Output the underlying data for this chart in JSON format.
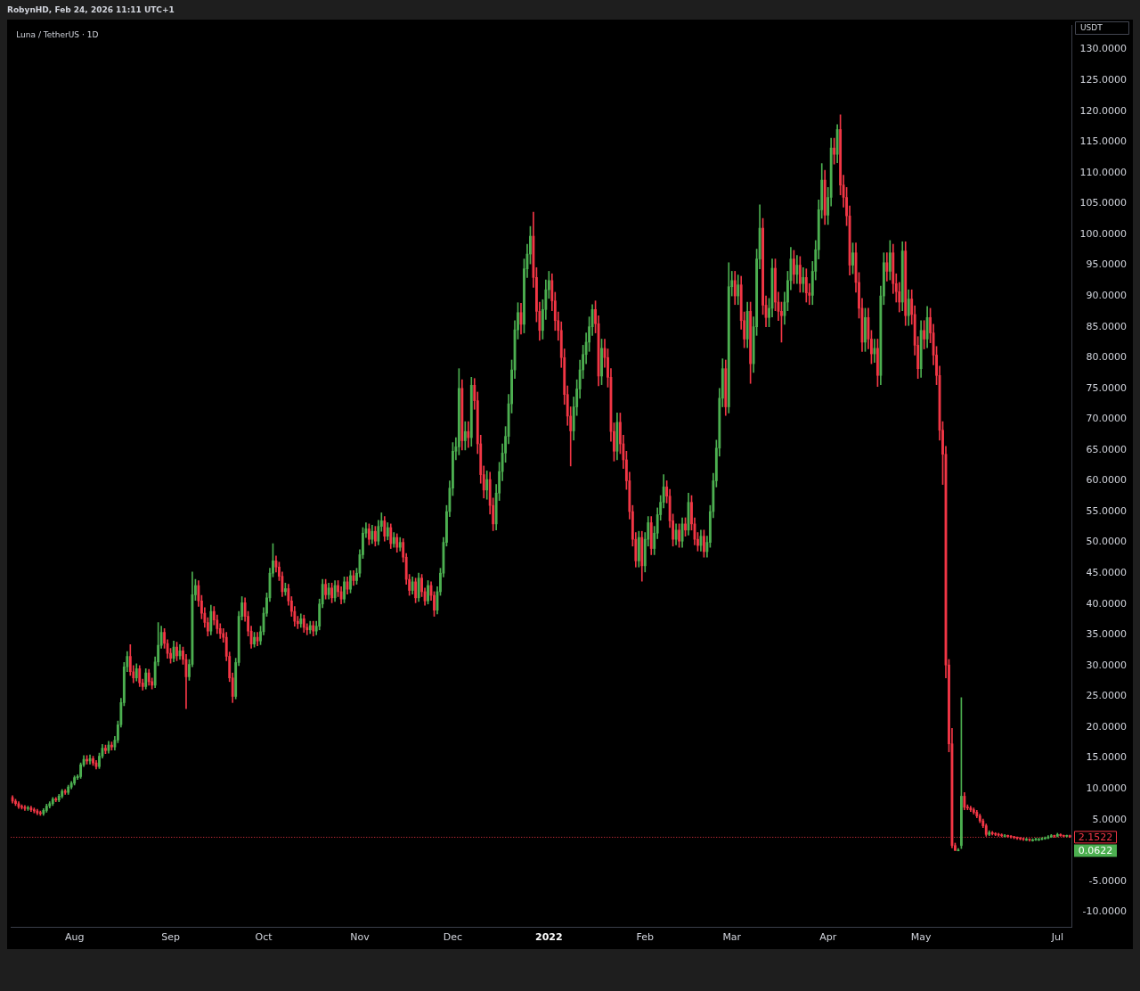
{
  "chart_data": {
    "type": "candlestick",
    "title": "Luna / TetherUS · 1D",
    "ylabel": "USDT",
    "annotations": [
      "RobynHD, Feb 24, 2026 11:11 UTC+1",
      "0.0622"
    ],
    "categories": [
      null,
      null,
      null,
      null,
      null,
      null,
      null,
      null,
      null,
      null,
      null,
      null,
      null,
      null,
      null,
      null,
      null,
      null,
      null,
      null,
      "Aug",
      null,
      null,
      null,
      null,
      null,
      null,
      null,
      null,
      null,
      null,
      null,
      null,
      null,
      null,
      null,
      null,
      null,
      null,
      null,
      null,
      null,
      null,
      null,
      null,
      null,
      null,
      null,
      null,
      null,
      null,
      "Sep",
      null,
      null,
      null,
      null,
      null,
      null,
      null,
      null,
      null,
      null,
      null,
      null,
      null,
      null,
      null,
      null,
      null,
      null,
      null,
      null,
      null,
      null,
      null,
      null,
      null,
      null,
      null,
      null,
      null,
      "Oct",
      null,
      null,
      null,
      null,
      null,
      null,
      null,
      null,
      null,
      null,
      null,
      null,
      null,
      null,
      null,
      null,
      null,
      null,
      null,
      null,
      null,
      null,
      null,
      null,
      null,
      null,
      null,
      null,
      null,
      null,
      "Nov",
      null,
      null,
      null,
      null,
      null,
      null,
      null,
      null,
      null,
      null,
      null,
      null,
      null,
      null,
      null,
      null,
      null,
      null,
      null,
      null,
      null,
      null,
      null,
      null,
      null,
      null,
      null,
      null,
      null,
      "Dec",
      null,
      null,
      null,
      null,
      null,
      null,
      null,
      null,
      null,
      null,
      null,
      null,
      null,
      null,
      null,
      null,
      null,
      null,
      null,
      null,
      null,
      null,
      null,
      null,
      null,
      null,
      null,
      null,
      null,
      null,
      "2022",
      null,
      null,
      null,
      null,
      null,
      null,
      null,
      null,
      null,
      null,
      null,
      null,
      null,
      null,
      null,
      null,
      null,
      null,
      null,
      null,
      null,
      null,
      null,
      null,
      null,
      null,
      null,
      null,
      null,
      null,
      "Feb",
      null,
      null,
      null,
      null,
      null,
      null,
      null,
      null,
      null,
      null,
      null,
      null,
      null,
      null,
      null,
      null,
      null,
      null,
      null,
      null,
      null,
      null,
      null,
      null,
      null,
      null,
      null,
      "Mar",
      null,
      null,
      null,
      null,
      null,
      null,
      null,
      null,
      null,
      null,
      null,
      null,
      null,
      null,
      null,
      null,
      null,
      null,
      null,
      null,
      null,
      null,
      null,
      null,
      null,
      null,
      null,
      null,
      null,
      null,
      "Apr",
      null,
      null,
      null,
      null,
      null,
      null,
      null,
      null,
      null,
      null,
      null,
      null,
      null,
      null,
      null,
      null,
      null,
      null,
      null,
      null,
      null,
      null,
      null,
      null,
      null,
      null,
      null,
      null,
      null,
      "May",
      null,
      null,
      null,
      null,
      null,
      null,
      null,
      null,
      null,
      null,
      null,
      null,
      null,
      null,
      null,
      null,
      null,
      null,
      null,
      null,
      null,
      null,
      null,
      null,
      null,
      null,
      null,
      null,
      null,
      null,
      null,
      null,
      null,
      null,
      null,
      null,
      null,
      null,
      null,
      null,
      null,
      null,
      null,
      "Jul",
      null,
      null,
      null,
      null
    ],
    "ohlc": [
      [
        8.6,
        8.9,
        7.7,
        8.0
      ],
      [
        8.0,
        8.3,
        7.3,
        7.6
      ],
      [
        7.6,
        7.9,
        6.8,
        7.1
      ],
      [
        7.1,
        7.4,
        6.7,
        7.0
      ],
      [
        7.0,
        7.3,
        6.5,
        6.8
      ],
      [
        6.8,
        7.2,
        6.5,
        6.9
      ],
      [
        6.9,
        7.2,
        6.3,
        6.6
      ],
      [
        6.6,
        6.9,
        6.1,
        6.4
      ],
      [
        6.4,
        6.7,
        5.8,
        6.1
      ],
      [
        6.1,
        6.4,
        5.7,
        6.0
      ],
      [
        6.0,
        6.8,
        5.7,
        6.5
      ],
      [
        6.5,
        7.5,
        6.2,
        7.2
      ],
      [
        7.2,
        7.9,
        6.9,
        7.6
      ],
      [
        7.6,
        8.6,
        7.3,
        8.3
      ],
      [
        8.3,
        8.6,
        7.9,
        8.2
      ],
      [
        8.2,
        9.1,
        7.9,
        8.8
      ],
      [
        8.8,
        9.9,
        8.5,
        9.6
      ],
      [
        9.6,
        9.9,
        9.1,
        9.4
      ],
      [
        9.4,
        10.6,
        9.1,
        10.3
      ],
      [
        10.3,
        11.2,
        10.0,
        10.9
      ],
      [
        10.9,
        12.1,
        10.6,
        11.8
      ],
      [
        11.8,
        12.3,
        11.5,
        12.0
      ],
      [
        12.0,
        14.2,
        11.7,
        13.9
      ],
      [
        13.9,
        15.4,
        13.6,
        14.8
      ],
      [
        14.8,
        15.4,
        14.0,
        14.5
      ],
      [
        14.5,
        15.5,
        14.0,
        14.9
      ],
      [
        14.9,
        15.3,
        13.8,
        14.2
      ],
      [
        14.2,
        14.6,
        13.2,
        13.6
      ],
      [
        13.6,
        15.8,
        13.3,
        15.3
      ],
      [
        15.3,
        17.2,
        15.0,
        16.6
      ],
      [
        16.6,
        17.1,
        15.7,
        16.2
      ],
      [
        16.2,
        17.7,
        15.8,
        17.1
      ],
      [
        17.1,
        17.6,
        16.3,
        16.8
      ],
      [
        16.8,
        18.5,
        16.3,
        17.9
      ],
      [
        17.9,
        21.0,
        17.5,
        20.4
      ],
      [
        20.4,
        24.7,
        20.0,
        24.0
      ],
      [
        24.0,
        30.5,
        23.5,
        29.8
      ],
      [
        29.8,
        32.3,
        29.0,
        31.5
      ],
      [
        31.5,
        33.4,
        28.4,
        29.0
      ],
      [
        29.0,
        30.0,
        27.2,
        28.0
      ],
      [
        28.0,
        30.3,
        27.5,
        29.5
      ],
      [
        29.5,
        30.0,
        26.6,
        27.2
      ],
      [
        27.2,
        27.8,
        26.0,
        26.6
      ],
      [
        26.6,
        29.5,
        26.2,
        28.8
      ],
      [
        28.8,
        29.4,
        26.8,
        27.4
      ],
      [
        27.4,
        28.0,
        26.2,
        26.8
      ],
      [
        26.8,
        31.4,
        26.4,
        30.6
      ],
      [
        30.6,
        37.0,
        30.0,
        33.3
      ],
      [
        33.3,
        36.4,
        32.8,
        35.4
      ],
      [
        35.4,
        36.0,
        32.8,
        33.6
      ],
      [
        33.6,
        34.2,
        31.2,
        32.0
      ],
      [
        32.0,
        32.8,
        30.4,
        31.2
      ],
      [
        31.2,
        34.0,
        30.6,
        33.0
      ],
      [
        33.0,
        33.8,
        30.8,
        31.6
      ],
      [
        31.6,
        33.4,
        31.0,
        32.4
      ],
      [
        32.4,
        33.0,
        30.2,
        31.0
      ],
      [
        31.0,
        31.8,
        23.0,
        28.2
      ],
      [
        28.2,
        31.0,
        27.6,
        30.2
      ],
      [
        30.2,
        45.2,
        29.8,
        41.5
      ],
      [
        41.5,
        44.0,
        40.6,
        43.0
      ],
      [
        43.0,
        43.8,
        39.6,
        40.5
      ],
      [
        40.5,
        41.4,
        37.6,
        38.5
      ],
      [
        38.5,
        39.4,
        36.2,
        37.0
      ],
      [
        37.0,
        37.8,
        34.8,
        35.6
      ],
      [
        35.6,
        39.8,
        35.0,
        38.8
      ],
      [
        38.8,
        39.6,
        36.6,
        37.4
      ],
      [
        37.4,
        38.2,
        35.2,
        36.0
      ],
      [
        36.0,
        36.8,
        34.4,
        35.2
      ],
      [
        35.2,
        36.0,
        33.8,
        34.6
      ],
      [
        34.6,
        35.4,
        30.8,
        31.5
      ],
      [
        31.5,
        32.2,
        27.4,
        28.0
      ],
      [
        28.0,
        28.8,
        24.0,
        25.0
      ],
      [
        25.0,
        31.2,
        24.6,
        30.5
      ],
      [
        30.5,
        38.8,
        30.0,
        38.0
      ],
      [
        38.0,
        41.2,
        37.4,
        40.2
      ],
      [
        40.2,
        41.0,
        37.2,
        38.0
      ],
      [
        38.0,
        38.8,
        34.8,
        35.6
      ],
      [
        35.6,
        36.4,
        32.8,
        33.5
      ],
      [
        33.5,
        35.4,
        33.0,
        34.6
      ],
      [
        34.6,
        35.4,
        33.2,
        34.0
      ],
      [
        34.0,
        36.4,
        33.4,
        35.5
      ],
      [
        35.5,
        39.4,
        35.0,
        38.5
      ],
      [
        38.5,
        41.8,
        38.0,
        41.0
      ],
      [
        41.0,
        45.8,
        40.4,
        45.0
      ],
      [
        45.0,
        49.8,
        44.4,
        47.0
      ],
      [
        47.0,
        47.8,
        45.2,
        46.0
      ],
      [
        46.0,
        46.8,
        43.8,
        44.5
      ],
      [
        44.5,
        45.2,
        41.2,
        42.0
      ],
      [
        42.0,
        43.4,
        41.4,
        42.5
      ],
      [
        42.5,
        43.2,
        39.8,
        40.5
      ],
      [
        40.5,
        41.2,
        38.0,
        38.8
      ],
      [
        38.8,
        39.6,
        36.4,
        37.2
      ],
      [
        37.2,
        38.0,
        36.0,
        36.8
      ],
      [
        36.8,
        38.4,
        36.2,
        37.6
      ],
      [
        37.6,
        38.2,
        35.4,
        36.2
      ],
      [
        36.2,
        36.8,
        35.0,
        35.8
      ],
      [
        35.8,
        37.2,
        35.2,
        36.5
      ],
      [
        36.5,
        37.2,
        34.8,
        35.6
      ],
      [
        35.6,
        37.2,
        35.0,
        36.4
      ],
      [
        36.4,
        40.8,
        35.8,
        40.0
      ],
      [
        40.0,
        44.0,
        39.4,
        43.2
      ],
      [
        43.2,
        44.0,
        40.8,
        41.5
      ],
      [
        41.5,
        43.4,
        40.8,
        42.6
      ],
      [
        42.6,
        43.4,
        40.2,
        41.0
      ],
      [
        41.0,
        43.8,
        40.4,
        43.0
      ],
      [
        43.0,
        43.8,
        41.2,
        42.0
      ],
      [
        42.0,
        42.8,
        40.0,
        40.8
      ],
      [
        40.8,
        44.4,
        40.2,
        43.6
      ],
      [
        43.6,
        44.4,
        41.6,
        42.4
      ],
      [
        42.4,
        45.4,
        41.8,
        44.6
      ],
      [
        44.6,
        45.4,
        43.0,
        43.8
      ],
      [
        43.8,
        45.8,
        43.2,
        45.0
      ],
      [
        45.0,
        48.8,
        44.4,
        48.0
      ],
      [
        48.0,
        52.4,
        47.4,
        51.5
      ],
      [
        51.5,
        53.2,
        50.8,
        52.2
      ],
      [
        52.2,
        53.0,
        49.6,
        50.5
      ],
      [
        50.5,
        52.8,
        49.8,
        51.8
      ],
      [
        51.8,
        52.6,
        49.4,
        50.2
      ],
      [
        50.2,
        53.6,
        49.6,
        52.6
      ],
      [
        52.6,
        54.8,
        51.8,
        53.5
      ],
      [
        53.5,
        54.2,
        50.2,
        51.0
      ],
      [
        51.0,
        53.2,
        50.4,
        52.4
      ],
      [
        52.4,
        53.0,
        49.0,
        49.8
      ],
      [
        49.8,
        51.6,
        49.2,
        50.8
      ],
      [
        50.8,
        51.4,
        48.4,
        49.2
      ],
      [
        49.2,
        50.8,
        48.6,
        50.0
      ],
      [
        50.0,
        50.6,
        46.8,
        47.6
      ],
      [
        47.6,
        48.2,
        43.2,
        44.0
      ],
      [
        44.0,
        44.8,
        41.4,
        42.2
      ],
      [
        42.2,
        44.4,
        41.6,
        43.6
      ],
      [
        43.6,
        44.2,
        40.2,
        41.0
      ],
      [
        41.0,
        45.0,
        40.4,
        44.2
      ],
      [
        44.2,
        44.8,
        41.2,
        42.0
      ],
      [
        42.0,
        42.6,
        39.8,
        40.5
      ],
      [
        40.5,
        43.8,
        40.0,
        43.0
      ],
      [
        43.0,
        43.6,
        40.6,
        41.4
      ],
      [
        41.4,
        42.0,
        38.0,
        39.0
      ],
      [
        39.0,
        42.8,
        38.4,
        42.0
      ],
      [
        42.0,
        45.8,
        41.4,
        45.0
      ],
      [
        45.0,
        50.8,
        44.4,
        50.0
      ],
      [
        50.0,
        56.0,
        49.4,
        55.0
      ],
      [
        55.0,
        60.0,
        54.2,
        58.8
      ],
      [
        58.8,
        66.2,
        57.6,
        64.8
      ],
      [
        64.8,
        67.0,
        63.4,
        65.5
      ],
      [
        65.5,
        78.2,
        64.2,
        75.0
      ],
      [
        75.0,
        76.4,
        65.0,
        66.5
      ],
      [
        66.5,
        69.6,
        65.0,
        68.0
      ],
      [
        68.0,
        69.6,
        65.4,
        67.0
      ],
      [
        67.0,
        76.8,
        65.6,
        75.5
      ],
      [
        75.5,
        76.6,
        71.6,
        73.0
      ],
      [
        73.0,
        74.4,
        64.4,
        66.0
      ],
      [
        66.0,
        67.4,
        59.6,
        61.0
      ],
      [
        61.0,
        62.4,
        57.2,
        58.5
      ],
      [
        58.5,
        61.6,
        57.0,
        60.2
      ],
      [
        60.2,
        61.4,
        54.6,
        56.0
      ],
      [
        56.0,
        57.2,
        51.9,
        53.0
      ],
      [
        53.0,
        59.4,
        52.0,
        58.0
      ],
      [
        58.0,
        63.0,
        56.8,
        61.5
      ],
      [
        61.5,
        66.0,
        60.0,
        64.5
      ],
      [
        64.5,
        68.8,
        63.0,
        67.2
      ],
      [
        67.2,
        74.0,
        66.0,
        72.5
      ],
      [
        72.5,
        79.6,
        71.0,
        78.0
      ],
      [
        78.0,
        86.0,
        76.6,
        84.5
      ],
      [
        84.5,
        88.9,
        83.0,
        87.3
      ],
      [
        87.3,
        88.8,
        83.8,
        85.4
      ],
      [
        85.4,
        96.0,
        84.0,
        94.4
      ],
      [
        94.4,
        98.4,
        93.0,
        96.8
      ],
      [
        96.8,
        101.3,
        95.2,
        99.7
      ],
      [
        99.7,
        103.6,
        91.4,
        93.0
      ],
      [
        93.0,
        94.6,
        85.8,
        87.5
      ],
      [
        87.5,
        89.0,
        82.8,
        84.4
      ],
      [
        84.4,
        89.4,
        83.0,
        87.8
      ],
      [
        87.8,
        92.6,
        86.2,
        91.0
      ],
      [
        91.0,
        94.0,
        89.6,
        92.5
      ],
      [
        92.5,
        93.6,
        87.6,
        89.2
      ],
      [
        89.2,
        90.6,
        84.4,
        86.0
      ],
      [
        86.0,
        87.4,
        82.8,
        84.4
      ],
      [
        84.4,
        85.8,
        78.4,
        80.0
      ],
      [
        80.0,
        81.4,
        72.4,
        74.0
      ],
      [
        74.0,
        75.4,
        69.0,
        70.5
      ],
      [
        70.5,
        72.0,
        62.4,
        68.1
      ],
      [
        68.1,
        73.6,
        66.6,
        72.0
      ],
      [
        72.0,
        76.4,
        70.6,
        74.9
      ],
      [
        74.9,
        79.6,
        73.4,
        78.0
      ],
      [
        78.0,
        82.0,
        76.6,
        80.5
      ],
      [
        80.5,
        84.0,
        79.0,
        82.5
      ],
      [
        82.5,
        86.6,
        81.0,
        85.0
      ],
      [
        85.0,
        88.6,
        83.6,
        87.8
      ],
      [
        87.8,
        89.2,
        84.0,
        85.5
      ],
      [
        85.5,
        86.8,
        75.4,
        77.0
      ],
      [
        77.0,
        83.0,
        75.6,
        81.5
      ],
      [
        81.5,
        83.0,
        78.4,
        80.0
      ],
      [
        80.0,
        81.4,
        75.2,
        76.8
      ],
      [
        76.8,
        78.2,
        66.4,
        68.0
      ],
      [
        68.0,
        69.4,
        63.2,
        64.8
      ],
      [
        64.8,
        71.0,
        63.4,
        69.5
      ],
      [
        69.5,
        71.0,
        64.4,
        66.0
      ],
      [
        66.0,
        67.4,
        62.0,
        63.4
      ],
      [
        63.4,
        64.8,
        58.6,
        60.0
      ],
      [
        60.0,
        61.4,
        53.8,
        55.0
      ],
      [
        55.0,
        56.0,
        49.4,
        50.5
      ],
      [
        50.5,
        51.6,
        46.0,
        47.0
      ],
      [
        47.0,
        51.8,
        46.0,
        50.8
      ],
      [
        50.8,
        51.8,
        43.7,
        46.2
      ],
      [
        46.2,
        51.6,
        45.2,
        50.5
      ],
      [
        50.5,
        54.2,
        49.4,
        53.2
      ],
      [
        53.2,
        54.2,
        48.0,
        49.0
      ],
      [
        49.0,
        52.6,
        48.0,
        51.5
      ],
      [
        51.5,
        55.6,
        50.6,
        54.5
      ],
      [
        54.5,
        57.6,
        53.6,
        56.5
      ],
      [
        56.5,
        61.0,
        55.6,
        59.0
      ],
      [
        59.0,
        60.0,
        56.4,
        57.5
      ],
      [
        57.5,
        58.6,
        52.4,
        53.5
      ],
      [
        53.5,
        54.6,
        49.4,
        50.5
      ],
      [
        50.5,
        53.0,
        49.6,
        52.0
      ],
      [
        52.0,
        53.0,
        49.2,
        50.2
      ],
      [
        50.2,
        54.0,
        49.2,
        53.0
      ],
      [
        53.0,
        54.0,
        51.0,
        52.0
      ],
      [
        52.0,
        58.0,
        51.2,
        56.5
      ],
      [
        56.5,
        57.6,
        52.0,
        53.0
      ],
      [
        53.0,
        54.0,
        49.6,
        50.5
      ],
      [
        50.5,
        51.6,
        48.6,
        49.5
      ],
      [
        49.5,
        52.0,
        48.6,
        51.0
      ],
      [
        51.0,
        52.0,
        47.6,
        48.5
      ],
      [
        48.5,
        51.0,
        47.6,
        50.0
      ],
      [
        50.0,
        56.0,
        49.2,
        55.0
      ],
      [
        55.0,
        61.2,
        54.0,
        60.0
      ],
      [
        60.0,
        66.6,
        59.0,
        65.3
      ],
      [
        65.3,
        75.0,
        64.0,
        73.4
      ],
      [
        73.4,
        79.8,
        72.0,
        78.2
      ],
      [
        78.2,
        79.6,
        70.6,
        72.0
      ],
      [
        72.0,
        95.4,
        71.0,
        91.5
      ],
      [
        91.5,
        94.0,
        90.0,
        92.5
      ],
      [
        92.5,
        94.0,
        88.6,
        90.0
      ],
      [
        90.0,
        93.4,
        88.6,
        91.8
      ],
      [
        91.8,
        93.2,
        84.6,
        86.0
      ],
      [
        86.0,
        87.4,
        81.6,
        83.0
      ],
      [
        83.0,
        89.0,
        81.6,
        87.5
      ],
      [
        87.5,
        89.0,
        75.8,
        79.0
      ],
      [
        79.0,
        86.6,
        77.6,
        85.0
      ],
      [
        85.0,
        97.6,
        83.6,
        96.0
      ],
      [
        96.0,
        104.8,
        94.4,
        101.0
      ],
      [
        101.0,
        102.6,
        87.0,
        88.5
      ],
      [
        88.5,
        90.0,
        85.0,
        86.5
      ],
      [
        86.5,
        89.6,
        85.0,
        88.0
      ],
      [
        88.0,
        96.0,
        86.6,
        94.5
      ],
      [
        94.5,
        96.0,
        87.6,
        89.0
      ],
      [
        89.0,
        90.6,
        86.0,
        87.5
      ],
      [
        87.5,
        89.0,
        82.5,
        86.8
      ],
      [
        86.8,
        90.6,
        85.4,
        89.0
      ],
      [
        89.0,
        94.0,
        87.6,
        92.5
      ],
      [
        92.5,
        97.9,
        91.0,
        96.0
      ],
      [
        96.0,
        97.4,
        92.0,
        93.5
      ],
      [
        93.5,
        96.6,
        92.0,
        95.0
      ],
      [
        95.0,
        96.4,
        90.6,
        92.0
      ],
      [
        92.0,
        94.6,
        90.6,
        93.0
      ],
      [
        93.0,
        94.4,
        89.0,
        90.5
      ],
      [
        90.5,
        92.0,
        88.6,
        90.1
      ],
      [
        90.1,
        95.6,
        88.6,
        94.0
      ],
      [
        94.0,
        99.0,
        92.6,
        97.5
      ],
      [
        97.5,
        105.6,
        96.0,
        104.0
      ],
      [
        104.0,
        111.5,
        102.6,
        108.8
      ],
      [
        108.8,
        110.4,
        101.6,
        103.1
      ],
      [
        103.1,
        107.6,
        101.6,
        106.0
      ],
      [
        106.0,
        115.6,
        104.6,
        114.0
      ],
      [
        114.0,
        115.6,
        111.4,
        113.0
      ],
      [
        113.0,
        117.8,
        111.6,
        117.0
      ],
      [
        117.0,
        119.4,
        106.4,
        108.0
      ],
      [
        108.0,
        109.6,
        104.4,
        106.0
      ],
      [
        106.0,
        107.6,
        101.4,
        103.0
      ],
      [
        103.0,
        104.6,
        93.4,
        95.0
      ],
      [
        95.0,
        98.6,
        93.6,
        97.0
      ],
      [
        97.0,
        98.6,
        90.6,
        92.2
      ],
      [
        92.2,
        93.8,
        86.4,
        88.0
      ],
      [
        88.0,
        89.6,
        81.0,
        82.5
      ],
      [
        82.5,
        88.0,
        81.0,
        86.5
      ],
      [
        86.5,
        88.0,
        81.4,
        83.0
      ],
      [
        83.0,
        84.4,
        79.0,
        80.6
      ],
      [
        80.6,
        83.0,
        79.2,
        81.5
      ],
      [
        81.5,
        83.0,
        75.3,
        77.1
      ],
      [
        77.1,
        91.6,
        75.6,
        90.0
      ],
      [
        90.0,
        97.0,
        88.6,
        95.4
      ],
      [
        95.4,
        97.0,
        92.4,
        94.0
      ],
      [
        94.0,
        99.0,
        92.6,
        97.0
      ],
      [
        97.0,
        98.4,
        90.4,
        92.0
      ],
      [
        92.0,
        93.6,
        89.0,
        90.7
      ],
      [
        90.7,
        92.2,
        87.4,
        89.0
      ],
      [
        89.0,
        98.8,
        87.6,
        97.3
      ],
      [
        97.3,
        98.8,
        85.2,
        86.8
      ],
      [
        86.8,
        91.0,
        85.2,
        89.5
      ],
      [
        89.5,
        91.0,
        85.4,
        87.0
      ],
      [
        87.0,
        88.4,
        80.4,
        82.0
      ],
      [
        82.0,
        83.4,
        76.6,
        78.2
      ],
      [
        78.2,
        86.0,
        76.8,
        84.4
      ],
      [
        84.4,
        86.0,
        81.4,
        83.0
      ],
      [
        83.0,
        88.3,
        81.6,
        86.5
      ],
      [
        86.5,
        88.0,
        82.4,
        84.0
      ],
      [
        84.0,
        85.4,
        78.8,
        80.4
      ],
      [
        80.4,
        81.8,
        75.6,
        77.1
      ],
      [
        77.1,
        78.6,
        66.6,
        68.2
      ],
      [
        68.2,
        69.6,
        59.4,
        64.3
      ],
      [
        64.3,
        65.6,
        28.0,
        30.1
      ],
      [
        30.1,
        31.0,
        16.0,
        17.3
      ],
      [
        17.3,
        19.8,
        0.4,
        0.8
      ],
      [
        0.8,
        1.2,
        0.0,
        0.0
      ],
      [
        0.0,
        0.3,
        0.0,
        0.0
      ],
      [
        0.8,
        24.8,
        0.3,
        8.8
      ],
      [
        8.8,
        9.4,
        6.6,
        7.0
      ],
      [
        7.0,
        7.4,
        6.6,
        6.9
      ],
      [
        6.9,
        7.2,
        6.3,
        6.6
      ],
      [
        6.6,
        6.9,
        5.9,
        6.2
      ],
      [
        6.2,
        6.5,
        5.3,
        5.6
      ],
      [
        5.6,
        5.9,
        4.5,
        4.8
      ],
      [
        4.8,
        5.1,
        3.7,
        4.0
      ],
      [
        4.0,
        4.3,
        2.3,
        2.6
      ],
      [
        2.6,
        3.2,
        2.4,
        2.9
      ],
      [
        2.9,
        3.1,
        2.5,
        2.7
      ],
      [
        2.7,
        2.9,
        2.4,
        2.6
      ],
      [
        2.6,
        2.8,
        2.3,
        2.5
      ],
      [
        2.5,
        2.7,
        2.2,
        2.4
      ],
      [
        2.4,
        2.6,
        2.2,
        2.4
      ],
      [
        2.4,
        2.5,
        2.1,
        2.3
      ],
      [
        2.3,
        2.4,
        2.0,
        2.2
      ],
      [
        2.2,
        2.3,
        1.9,
        2.1
      ],
      [
        2.1,
        2.2,
        1.8,
        2.0
      ],
      [
        2.0,
        2.1,
        1.7,
        1.9
      ],
      [
        1.9,
        2.0,
        1.6,
        1.8
      ],
      [
        1.8,
        2.0,
        1.6,
        1.8
      ],
      [
        1.8,
        1.9,
        1.5,
        1.7
      ],
      [
        1.7,
        1.9,
        1.5,
        1.7
      ],
      [
        1.7,
        2.0,
        1.6,
        1.8
      ],
      [
        1.8,
        2.0,
        1.6,
        1.8
      ],
      [
        1.8,
        2.1,
        1.7,
        1.9
      ],
      [
        1.9,
        2.2,
        1.8,
        2.0
      ],
      [
        2.0,
        2.4,
        1.9,
        2.2
      ],
      [
        2.2,
        2.6,
        2.1,
        2.4
      ],
      [
        2.4,
        2.5,
        2.1,
        2.3
      ],
      [
        2.3,
        2.8,
        2.2,
        2.6
      ],
      [
        2.6,
        2.7,
        2.3,
        2.4
      ],
      [
        2.4,
        2.5,
        2.2,
        2.3
      ],
      [
        2.3,
        2.5,
        2.2,
        2.4
      ],
      [
        2.4,
        2.5,
        2.1,
        2.2
      ]
    ],
    "colors": [
      "#f23645",
      "#f23645",
      "#f23645",
      "#f23645",
      "#f23645",
      "#4caf50",
      "#f23645",
      "#f23645",
      "#f23645",
      "#f23645",
      "#4caf50",
      "#4caf50",
      "#4caf50",
      "#4caf50",
      "#f23645",
      "#4caf50",
      "#4caf50",
      "#f23645",
      "#4caf50",
      "#4caf50",
      "#4caf50",
      "#4caf50",
      "#4caf50",
      "#4caf50",
      "#f23645",
      "#4caf50",
      "#f23645",
      "#f23645",
      "#4caf50",
      "#4caf50",
      "#f23645",
      "#4caf50",
      "#f23645",
      "#4caf50",
      "#4caf50",
      "#4caf50",
      "#4caf50",
      "#4caf50",
      "#f23645",
      "#f23645",
      "#4caf50",
      "#f23645",
      "#f23645",
      "#4caf50",
      "#f23645",
      "#f23645",
      "#4caf50",
      "#4caf50",
      "#4caf50",
      "#f23645",
      "#f23645",
      "#f23645",
      "#4caf50",
      "#f23645",
      "#4caf50",
      "#f23645",
      "#f23645",
      "#4caf50",
      "#4caf50",
      "#4caf50",
      "#f23645",
      "#f23645",
      "#f23645",
      "#f23645",
      "#4caf50",
      "#f23645",
      "#f23645",
      "#f23645",
      "#f23645",
      "#f23645",
      "#f23645",
      "#f23645",
      "#4caf50",
      "#4caf50",
      "#4caf50",
      "#f23645",
      "#f23645",
      "#f23645",
      "#4caf50",
      "#f23645",
      "#4caf50",
      "#4caf50",
      "#4caf50",
      "#4caf50",
      "#4caf50",
      "#f23645",
      "#f23645",
      "#f23645",
      "#4caf50",
      "#f23645",
      "#f23645",
      "#f23645",
      "#f23645",
      "#4caf50",
      "#f23645",
      "#f23645",
      "#4caf50",
      "#f23645",
      "#4caf50",
      "#4caf50",
      "#4caf50",
      "#f23645",
      "#4caf50",
      "#f23645",
      "#4caf50",
      "#f23645",
      "#f23645",
      "#4caf50",
      "#f23645",
      "#4caf50",
      "#f23645",
      "#4caf50",
      "#4caf50",
      "#4caf50",
      "#4caf50",
      "#f23645",
      "#4caf50",
      "#f23645",
      "#4caf50",
      "#4caf50",
      "#f23645",
      "#4caf50",
      "#f23645",
      "#4caf50",
      "#f23645",
      "#4caf50",
      "#f23645",
      "#f23645",
      "#f23645",
      "#4caf50",
      "#f23645",
      "#4caf50",
      "#f23645",
      "#f23645",
      "#4caf50",
      "#f23645",
      "#f23645",
      "#4caf50",
      "#4caf50",
      "#4caf50",
      "#4caf50",
      "#4caf50",
      "#4caf50",
      "#4caf50",
      "#4caf50",
      "#f23645",
      "#4caf50",
      "#f23645",
      "#4caf50",
      "#f23645",
      "#f23645",
      "#f23645",
      "#f23645",
      "#4caf50",
      "#f23645",
      "#f23645",
      "#4caf50",
      "#4caf50",
      "#4caf50",
      "#4caf50",
      "#4caf50",
      "#4caf50",
      "#4caf50",
      "#4caf50",
      "#f23645",
      "#4caf50",
      "#4caf50",
      "#4caf50",
      "#f23645",
      "#f23645",
      "#f23645",
      "#4caf50",
      "#4caf50",
      "#4caf50",
      "#f23645",
      "#f23645",
      "#f23645",
      "#f23645",
      "#f23645",
      "#f23645",
      "#f23645",
      "#4caf50",
      "#4caf50",
      "#4caf50",
      "#4caf50",
      "#4caf50",
      "#4caf50",
      "#4caf50",
      "#f23645",
      "#f23645",
      "#4caf50",
      "#f23645",
      "#f23645",
      "#f23645",
      "#f23645",
      "#4caf50",
      "#f23645",
      "#f23645",
      "#f23645",
      "#f23645",
      "#f23645",
      "#f23645",
      "#4caf50",
      "#f23645",
      "#4caf50",
      "#4caf50",
      "#f23645",
      "#4caf50",
      "#4caf50",
      "#4caf50",
      "#4caf50",
      "#f23645",
      "#f23645",
      "#f23645",
      "#4caf50",
      "#f23645",
      "#4caf50",
      "#f23645",
      "#4caf50",
      "#f23645",
      "#f23645",
      "#f23645",
      "#4caf50",
      "#f23645",
      "#4caf50",
      "#4caf50",
      "#4caf50",
      "#4caf50",
      "#4caf50",
      "#4caf50",
      "#f23645",
      "#4caf50",
      "#4caf50",
      "#f23645",
      "#4caf50",
      "#f23645",
      "#f23645",
      "#4caf50",
      "#f23645",
      "#4caf50",
      "#4caf50",
      "#4caf50",
      "#f23645",
      "#f23645",
      "#4caf50",
      "#4caf50",
      "#f23645",
      "#f23645",
      "#f23645",
      "#4caf50",
      "#4caf50",
      "#4caf50",
      "#f23645",
      "#4caf50",
      "#f23645",
      "#4caf50",
      "#f23645",
      "#f23645",
      "#4caf50",
      "#4caf50",
      "#4caf50",
      "#4caf50",
      "#f23645",
      "#4caf50",
      "#4caf50",
      "#f23645",
      "#4caf50",
      "#f23645",
      "#f23645",
      "#f23645",
      "#f23645",
      "#4caf50",
      "#f23645",
      "#f23645",
      "#f23645",
      "#4caf50",
      "#f23645",
      "#f23645",
      "#4caf50",
      "#f23645",
      "#4caf50",
      "#4caf50",
      "#f23645",
      "#4caf50",
      "#f23645",
      "#f23645",
      "#f23645",
      "#4caf50",
      "#f23645",
      "#4caf50",
      "#f23645",
      "#f23645",
      "#f23645",
      "#4caf50",
      "#f23645",
      "#4caf50",
      "#f23645",
      "#f23645",
      "#f23645",
      "#f23645",
      "#f23645",
      "#f23645",
      "#f23645",
      "#f23645",
      "#f23645",
      "#4caf50",
      "#4caf50",
      "#f23645",
      "#f23645",
      "#f23645",
      "#f23645",
      "#f23645",
      "#f23645",
      "#f23645",
      "#f23645",
      "#4caf50",
      "#f23645",
      "#f23645",
      "#f23645",
      "#f23645",
      "#4caf50",
      "#f23645",
      "#f23645",
      "#f23645",
      "#f23645",
      "#f23645",
      "#f23645",
      "#4caf50",
      "#f23645",
      "#4caf50",
      "#4caf50",
      "#4caf50",
      "#4caf50",
      "#4caf50",
      "#4caf50",
      "#4caf50",
      "#f23645",
      "#4caf50",
      "#f23645",
      "#f23645",
      "#4caf50",
      "#f23645"
    ],
    "ylim": [
      -12.4,
      133.9
    ],
    "yticks": [
      {
        "value": -10,
        "label": "-10.0000"
      },
      {
        "value": -5,
        "label": "-5.0000"
      },
      {
        "value": 5,
        "label": "5.0000"
      },
      {
        "value": 10,
        "label": "10.0000"
      },
      {
        "value": 15,
        "label": "15.0000"
      },
      {
        "value": 20,
        "label": "20.0000"
      },
      {
        "value": 25,
        "label": "25.0000"
      },
      {
        "value": 30,
        "label": "30.0000"
      },
      {
        "value": 35,
        "label": "35.0000"
      },
      {
        "value": 40,
        "label": "40.0000"
      },
      {
        "value": 45,
        "label": "45.0000"
      },
      {
        "value": 50,
        "label": "50.0000"
      },
      {
        "value": 55,
        "label": "55.0000"
      },
      {
        "value": 60,
        "label": "60.0000"
      },
      {
        "value": 65,
        "label": "65.0000"
      },
      {
        "value": 70,
        "label": "70.0000"
      },
      {
        "value": 75,
        "label": "75.0000"
      },
      {
        "value": 80,
        "label": "80.0000"
      },
      {
        "value": 85,
        "label": "85.0000"
      },
      {
        "value": 90,
        "label": "90.0000"
      },
      {
        "value": 95,
        "label": "95.0000"
      },
      {
        "value": 100,
        "label": "100.0000"
      },
      {
        "value": 105,
        "label": "105.0000"
      },
      {
        "value": 110,
        "label": "110.0000"
      },
      {
        "value": 115,
        "label": "115.0000"
      },
      {
        "value": 120,
        "label": "120.0000"
      },
      {
        "value": 125,
        "label": "125.0000"
      },
      {
        "value": 130,
        "label": "130.0000"
      }
    ],
    "ref_lines": [
      {
        "axis": "y",
        "value": 2.1522,
        "label": "2.1522",
        "color": "#f23645",
        "line_style": "dotted"
      }
    ]
  }
}
